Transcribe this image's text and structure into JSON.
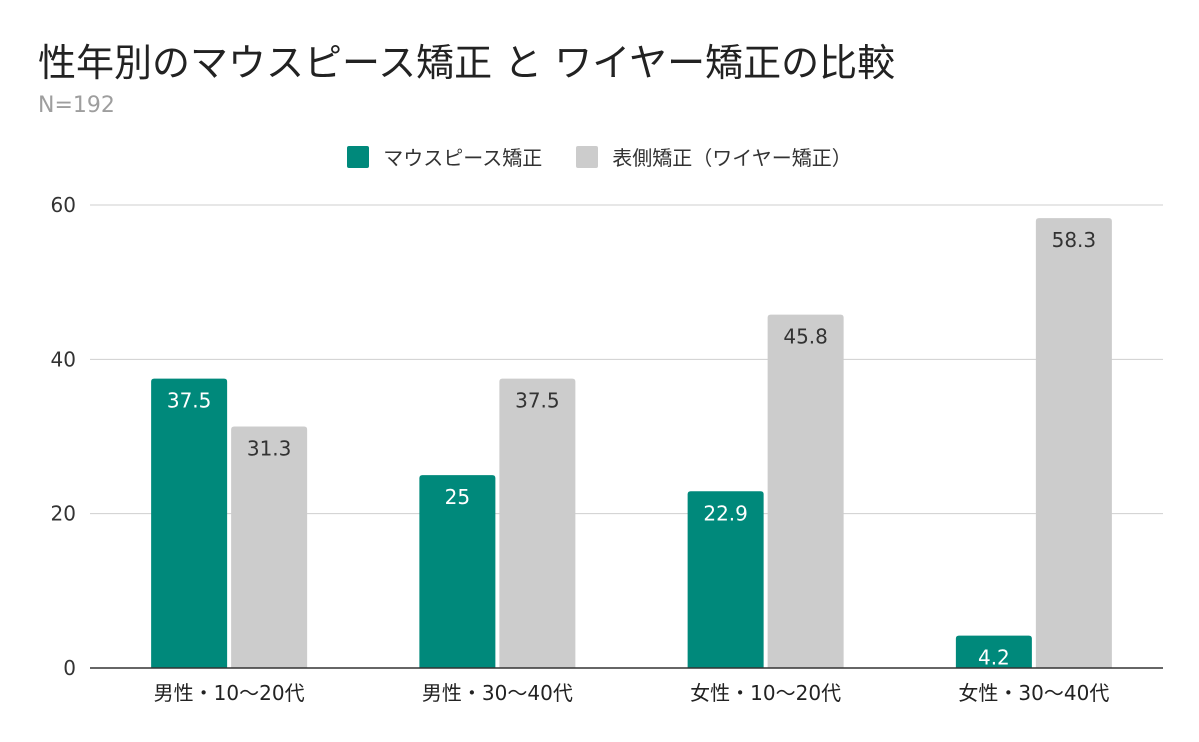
{
  "chart_data": {
    "type": "bar",
    "title": "性年別のマウスピース矯正 と ワイヤー矯正の比較",
    "subtitle": "N=192",
    "categories": [
      "男性・10〜20代",
      "男性・30〜40代",
      "女性・10〜20代",
      "女性・30〜40代"
    ],
    "series": [
      {
        "name": "マウスピース矯正",
        "color": "#00897b",
        "label_color": "#ffffff",
        "values": [
          37.5,
          25,
          22.9,
          4.2
        ]
      },
      {
        "name": "表側矯正（ワイヤー矯正）",
        "color": "#cccccc",
        "label_color": "#333333",
        "values": [
          31.3,
          37.5,
          45.8,
          58.3
        ]
      }
    ],
    "ylim": [
      0,
      60
    ],
    "yticks": [
      0,
      20,
      40,
      60
    ],
    "xlabel": "",
    "ylabel": "",
    "grid": true,
    "legend_position": "top-center"
  }
}
